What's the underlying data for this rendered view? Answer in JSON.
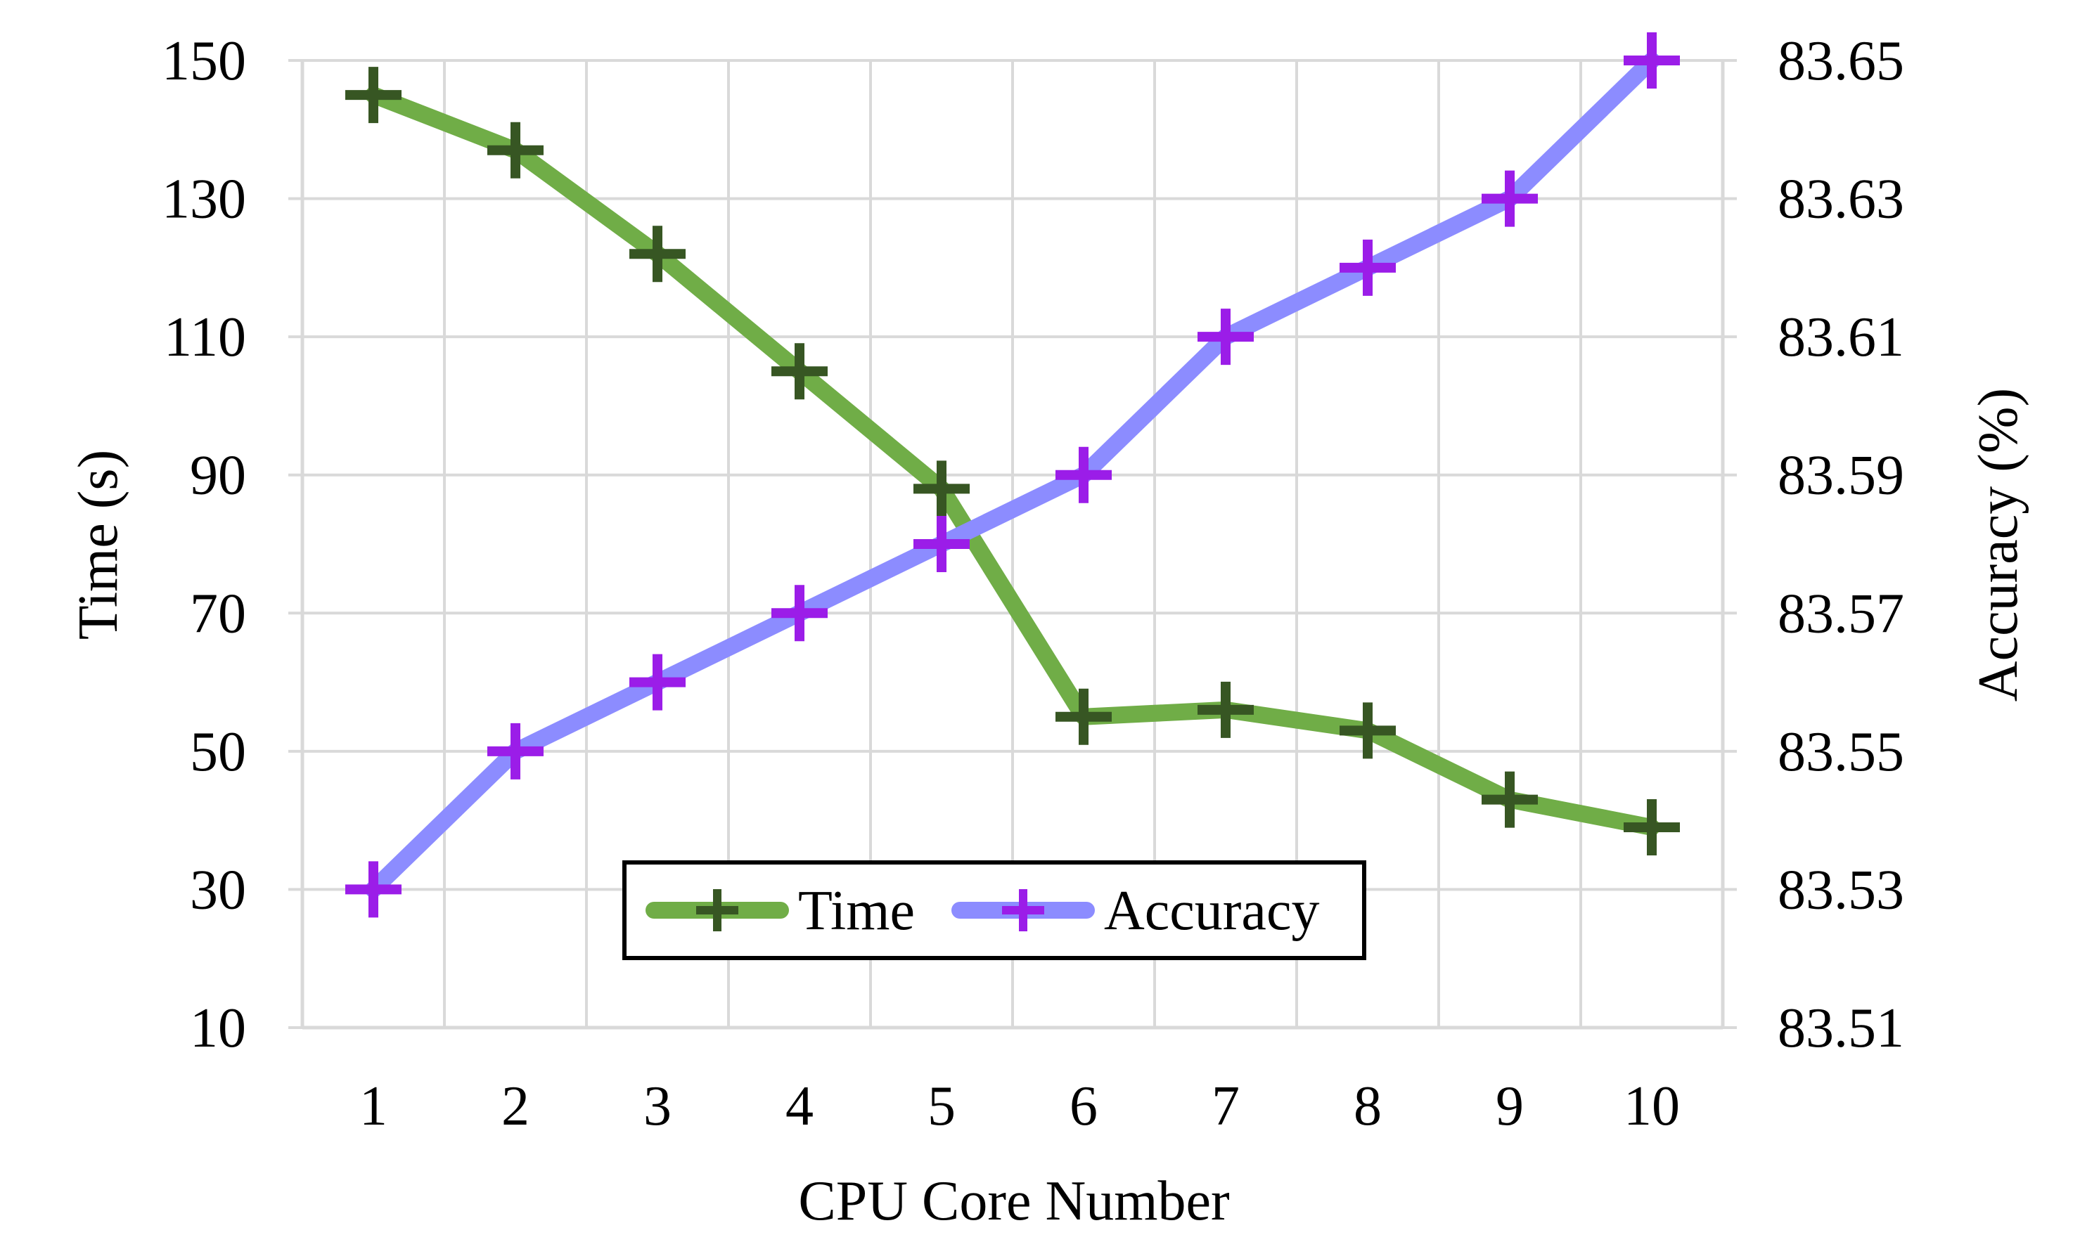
{
  "chart_data": {
    "type": "line",
    "categories": [
      "1",
      "2",
      "3",
      "4",
      "5",
      "6",
      "7",
      "8",
      "9",
      "10"
    ],
    "xlabel": "CPU Core Number",
    "ylabel": "Time (s)",
    "y2label": "Accuracy (%)",
    "ylim": [
      10,
      150
    ],
    "y2lim": [
      83.51,
      83.65
    ],
    "yticks": [
      "10",
      "30",
      "50",
      "70",
      "90",
      "110",
      "130",
      "150"
    ],
    "y2ticks": [
      "83.51",
      "83.53",
      "83.55",
      "83.57",
      "83.59",
      "83.61",
      "83.63",
      "83.65"
    ],
    "grid": true,
    "legend_position": "bottom-center",
    "series": [
      {
        "name": "Time",
        "axis": "left",
        "values": [
          145,
          137,
          122,
          105,
          88,
          55,
          56,
          53,
          43,
          39
        ],
        "line_color": "#70ad47",
        "marker_color": "#375623"
      },
      {
        "name": "Accuracy",
        "axis": "right",
        "values": [
          83.53,
          83.55,
          83.56,
          83.57,
          83.58,
          83.59,
          83.61,
          83.62,
          83.63,
          83.65
        ],
        "line_color": "#8c8cff",
        "marker_color": "#9b1de8"
      }
    ]
  }
}
